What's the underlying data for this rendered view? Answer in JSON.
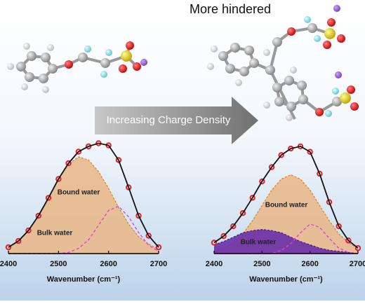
{
  "header": {
    "title": "More hindered"
  },
  "arrow_label": "Increasing Charge Density",
  "chart_data": [
    {
      "type": "spectrum",
      "x_label": "Wavenumber (cm⁻¹)",
      "x": [
        2400,
        2420,
        2440,
        2460,
        2480,
        2500,
        2520,
        2540,
        2560,
        2580,
        2600,
        2620,
        2640,
        2660,
        2680,
        2700
      ],
      "xlim": [
        2400,
        2700
      ],
      "xticks": [
        2400,
        2500,
        2600,
        2700
      ],
      "ylim": [
        0,
        1.08
      ],
      "series": [
        {
          "name": "Bound water",
          "style": "fill",
          "color": "#e8b98c",
          "line_color": "#e0862a",
          "values": [
            0.06,
            0.12,
            0.22,
            0.36,
            0.53,
            0.71,
            0.85,
            0.92,
            0.89,
            0.78,
            0.62,
            0.44,
            0.28,
            0.16,
            0.09,
            0.04
          ]
        },
        {
          "name": "Bulk water",
          "style": "dashed",
          "color": "#e040e0",
          "values": [
            0,
            0,
            0,
            0,
            0,
            0,
            0.01,
            0.05,
            0.13,
            0.27,
            0.41,
            0.45,
            0.35,
            0.2,
            0.08,
            0.02
          ]
        },
        {
          "style": "points",
          "color": "#e8202a",
          "line_color": "#111111",
          "values": [
            0.06,
            0.12,
            0.22,
            0.36,
            0.53,
            0.71,
            0.86,
            0.97,
            1.02,
            1.05,
            1.03,
            0.89,
            0.63,
            0.36,
            0.17,
            0.06
          ]
        }
      ]
    },
    {
      "type": "spectrum",
      "x_label": "Wavenumber (cm⁻¹)",
      "x": [
        2400,
        2420,
        2440,
        2460,
        2480,
        2500,
        2520,
        2540,
        2560,
        2580,
        2600,
        2620,
        2640,
        2660,
        2680,
        2700
      ],
      "xlim": [
        2400,
        2700
      ],
      "xticks": [
        2400,
        2500,
        2600,
        2700
      ],
      "ylim": [
        0,
        1.05
      ],
      "series": [
        {
          "name": "Bound water",
          "style": "fill",
          "color": "#e8b98c",
          "line_color": "#e0862a",
          "values": [
            0.02,
            0.05,
            0.1,
            0.18,
            0.3,
            0.44,
            0.58,
            0.68,
            0.72,
            0.68,
            0.58,
            0.44,
            0.3,
            0.18,
            0.1,
            0.05
          ]
        },
        {
          "name": "Bulk water",
          "style": "fill",
          "color": "#6a2fa8",
          "line_color": "#4a1f88",
          "values": [
            0.08,
            0.11,
            0.15,
            0.19,
            0.21,
            0.22,
            0.21,
            0.19,
            0.15,
            0.11,
            0.08,
            0.05,
            0.03,
            0.02,
            0.01,
            0
          ]
        },
        {
          "style": "dashed",
          "color": "#e040e0",
          "values": [
            0,
            0,
            0,
            0,
            0,
            0,
            0,
            0.03,
            0.09,
            0.19,
            0.27,
            0.24,
            0.14,
            0.05,
            0.01,
            0
          ]
        },
        {
          "style": "points",
          "color": "#e8202a",
          "line_color": "#111111",
          "values": [
            0.1,
            0.16,
            0.25,
            0.37,
            0.51,
            0.66,
            0.79,
            0.9,
            0.96,
            0.98,
            0.93,
            0.73,
            0.47,
            0.25,
            0.12,
            0.05
          ]
        }
      ]
    }
  ]
}
